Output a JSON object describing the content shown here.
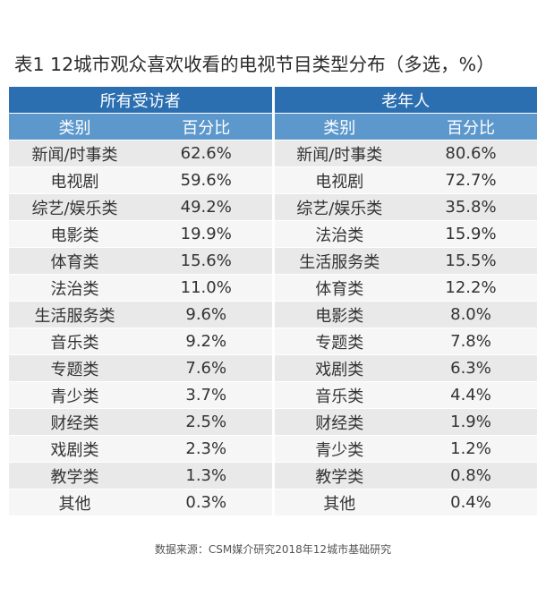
{
  "title": "表1  12城市观众喜欢收看的电视节目类型分布（多选，%）",
  "groups": [
    "所有受访者",
    "老年人"
  ],
  "columns": [
    "类别",
    "百分比",
    "类别",
    "百分比"
  ],
  "rows": [
    [
      "新闻/时事类",
      "62.6%",
      "新闻/时事类",
      "80.6%"
    ],
    [
      "电视剧",
      "59.6%",
      "电视剧",
      "72.7%"
    ],
    [
      "综艺/娱乐类",
      "49.2%",
      "综艺/娱乐类",
      "35.8%"
    ],
    [
      "电影类",
      "19.9%",
      "法治类",
      "15.9%"
    ],
    [
      "体育类",
      "15.6%",
      "生活服务类",
      "15.5%"
    ],
    [
      "法治类",
      "11.0%",
      "体育类",
      "12.2%"
    ],
    [
      "生活服务类",
      "9.6%",
      "电影类",
      "8.0%"
    ],
    [
      "音乐类",
      "9.2%",
      "专题类",
      "7.8%"
    ],
    [
      "专题类",
      "7.6%",
      "戏剧类",
      "6.3%"
    ],
    [
      "青少类",
      "3.7%",
      "音乐类",
      "4.4%"
    ],
    [
      "财经类",
      "2.5%",
      "财经类",
      "1.9%"
    ],
    [
      "戏剧类",
      "2.3%",
      "青少类",
      "1.2%"
    ],
    [
      "教学类",
      "1.3%",
      "教学类",
      "0.8%"
    ],
    [
      "其他",
      "0.3%",
      "其他",
      "0.4%"
    ]
  ],
  "source": "数据来源：CSM媒介研究2018年12城市基础研究"
}
